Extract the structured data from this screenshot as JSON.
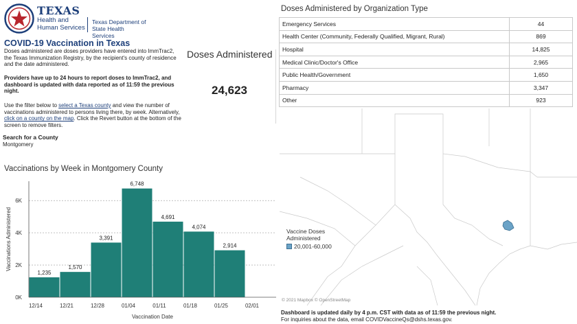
{
  "header": {
    "logo_main": "TEXAS",
    "logo_sub": "Health and Human Services",
    "logo_dept": "Texas Department of",
    "logo_dept2": "State Health Services"
  },
  "page_title": "COVID-19 Vaccination in Texas",
  "intro": "Doses administered are doses providers have entered into ImmTrac2, the Texas Immunization Registry, by the recipient's county of residence and the date administered.",
  "providers_note": "Providers have up to 24 hours to report doses to ImmTrac2, and dashboard is updated  with data reported as of 11:59 the previous night.",
  "filter_note": {
    "part1": "Use the filter below to ",
    "link1": "select a Texas county",
    "part2": " and view the number of vaccinations administered to persons living there, by week. Alternatively, ",
    "link2": "click on a county on the map",
    "part3": ". Click the Revert button at the bottom of the screen to remove filters."
  },
  "search": {
    "label": "Search for a County",
    "value": "Montgomery"
  },
  "doses": {
    "heading": "Doses Administered",
    "total": "24,623"
  },
  "chart_title": "Vaccinations by Week in Montgomery County",
  "chart_data": {
    "type": "bar",
    "title": "Vaccinations by Week in Montgomery County",
    "xlabel": "Vaccination Date",
    "ylabel": "Vaccinations Administered",
    "x_ticks": [
      "12/14",
      "12/21",
      "12/28",
      "01/04",
      "01/11",
      "01/18",
      "01/25",
      "02/01"
    ],
    "categories": [
      "12/14",
      "12/21",
      "12/28",
      "01/04",
      "01/11",
      "01/18",
      "01/25"
    ],
    "values": [
      1235,
      1570,
      3391,
      6748,
      4691,
      4074,
      2914
    ],
    "labels": [
      "1,235",
      "1,570",
      "3,391",
      "6,748",
      "4,691",
      "4,074",
      "2,914"
    ],
    "y_ticks": [
      0,
      2000,
      4000,
      6000
    ],
    "y_tick_labels": [
      "0K",
      "2K",
      "4K",
      "6K"
    ],
    "ylim": [
      0,
      7200
    ],
    "grid": true,
    "bar_color": "#1f7f77"
  },
  "org": {
    "title": "Doses Administered by Organization Type",
    "rows": [
      {
        "name": "Emergency Services",
        "value": "44"
      },
      {
        "name": "Health Center (Community, Federally Qualified, Migrant, Rural)",
        "value": "869"
      },
      {
        "name": "Hospital",
        "value": "14,825"
      },
      {
        "name": "Medical Clinic/Doctor's Office",
        "value": "2,965"
      },
      {
        "name": "Public Health/Government",
        "value": "1,650"
      },
      {
        "name": "Pharmacy",
        "value": "3,347"
      },
      {
        "name": "Other",
        "value": "923"
      }
    ]
  },
  "map": {
    "legend_title": "Vaccine Doses Administered",
    "legend_item": "20,001-60,000",
    "legend_color": "#6ba3c7",
    "attribution": "© 2021 Mapbox © OpenStreetMap"
  },
  "footer": {
    "updated": "Dashboard is updated daily by 4 p.m. CST with data as of 11:59 the previous night.",
    "inquiry": "For inquiries about the data, email COVIDVaccineQs@dshs.texas.gov."
  }
}
